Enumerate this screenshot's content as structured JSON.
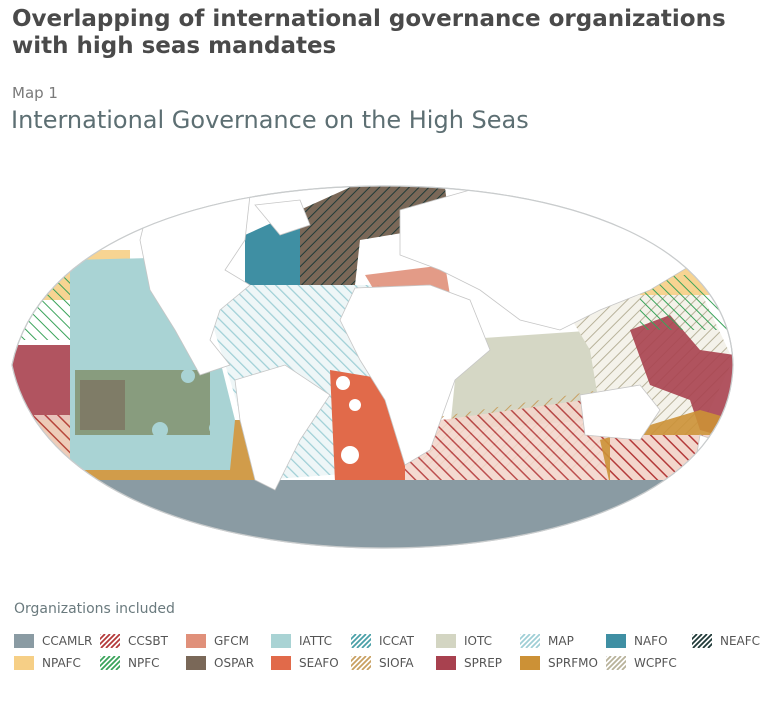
{
  "header": {
    "title": "Overlapping of international governance organizations with high seas mandates",
    "map_number": "Map 1",
    "map_title": "International Governance on the High Seas"
  },
  "legend": {
    "title": "Organizations included",
    "items": [
      {
        "label": "CCAMLR",
        "style": "solid",
        "color": "#8a9ba3"
      },
      {
        "label": "CCSBT",
        "style": "hatch",
        "color": "#b43a3a"
      },
      {
        "label": "GFCM",
        "style": "solid",
        "color": "#e0907a"
      },
      {
        "label": "IATTC",
        "style": "solid",
        "color": "#a9d3d4"
      },
      {
        "label": "ICCAT",
        "style": "hatch",
        "color": "#4aa0a8"
      },
      {
        "label": "IOTC",
        "style": "solid",
        "color": "#d3d5c2"
      },
      {
        "label": "MAP",
        "style": "hatch",
        "color": "#9fcfd6"
      },
      {
        "label": "NAFO",
        "style": "solid",
        "color": "#3f8fa3"
      },
      {
        "label": "NEAFC",
        "style": "hatch",
        "color": "#203a38"
      },
      {
        "label": "NPAFC",
        "style": "solid",
        "color": "#f6cf86"
      },
      {
        "label": "NPFC",
        "style": "hatch",
        "color": "#3aa35a"
      },
      {
        "label": "OSPAR",
        "style": "solid",
        "color": "#7a6858"
      },
      {
        "label": "SEAFO",
        "style": "solid",
        "color": "#e16a4a"
      },
      {
        "label": "SIOFA",
        "style": "hatch",
        "color": "#c8a062"
      },
      {
        "label": "SPREP",
        "style": "solid",
        "color": "#a8414f"
      },
      {
        "label": "SPRFMO",
        "style": "solid",
        "color": "#cc9136"
      },
      {
        "label": "WCPFC",
        "style": "hatch",
        "color": "#b8b29a"
      }
    ]
  }
}
